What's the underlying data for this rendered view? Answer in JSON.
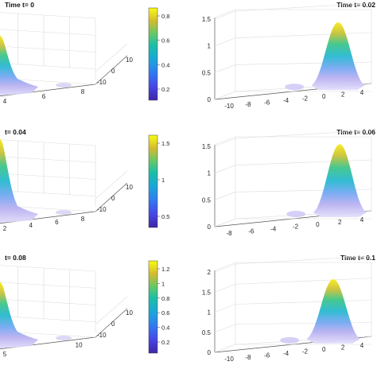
{
  "chart_data": [
    {
      "type": "surface",
      "title": "Time t= 0",
      "peak_z": 0.95,
      "peak_x": -2,
      "colorbar_ticks": [
        "0.2",
        "0.4",
        "0.6",
        "0.8"
      ],
      "x_ticks": [
        "4",
        "6",
        "8"
      ],
      "y_ticks": [
        "10",
        "0",
        "-10"
      ],
      "z_ticks": []
    },
    {
      "type": "surface",
      "title": "Time t= 0.02",
      "peak_z": 1.35,
      "peak_x": 1.5,
      "x_ticks": [
        "-10",
        "-8",
        "-6",
        "-4",
        "-2",
        "0",
        "2",
        "4"
      ],
      "y_ticks": [],
      "z_ticks": [
        "0",
        "0.5",
        "1",
        "1.5"
      ]
    },
    {
      "type": "surface",
      "title": "t= 0.04",
      "peak_z": 1.7,
      "peak_x": -2,
      "colorbar_ticks": [
        "0.5",
        "1",
        "1.5"
      ],
      "x_ticks": [
        "2",
        "4",
        "6",
        "8"
      ],
      "y_ticks": [
        "10",
        "0",
        "-10"
      ],
      "z_ticks": []
    },
    {
      "type": "surface",
      "title": "Time t= 0.06",
      "peak_z": 1.45,
      "peak_x": 2,
      "x_ticks": [
        "-8",
        "-6",
        "-4",
        "-2",
        "0",
        "2",
        "4"
      ],
      "y_ticks": [],
      "z_ticks": [
        "0",
        "0.5",
        "1",
        "1.5"
      ]
    },
    {
      "type": "surface",
      "title": "t= 0.08",
      "peak_z": 1.15,
      "peak_x": -2,
      "colorbar_ticks": [
        "0.2",
        "0.4",
        "0.6",
        "0.8",
        "1",
        "1.2"
      ],
      "x_ticks": [
        "5",
        "10"
      ],
      "y_ticks": [
        "10",
        "0",
        "-10"
      ],
      "z_ticks": []
    },
    {
      "type": "surface",
      "title": "Time t= 0.1",
      "peak_z": 1.7,
      "peak_x": 1,
      "x_ticks": [
        "-10",
        "-8",
        "-6",
        "-4",
        "-2",
        "0",
        "2",
        "4"
      ],
      "y_ticks": [],
      "z_ticks": [
        "0",
        "0.5",
        "1",
        "1.5",
        "2"
      ]
    }
  ],
  "colors": {
    "parula_low": "#352a87",
    "parula_mid": "#21b5a3",
    "parula_high": "#f9fb0e",
    "surface_base": "#c8c4ef"
  }
}
